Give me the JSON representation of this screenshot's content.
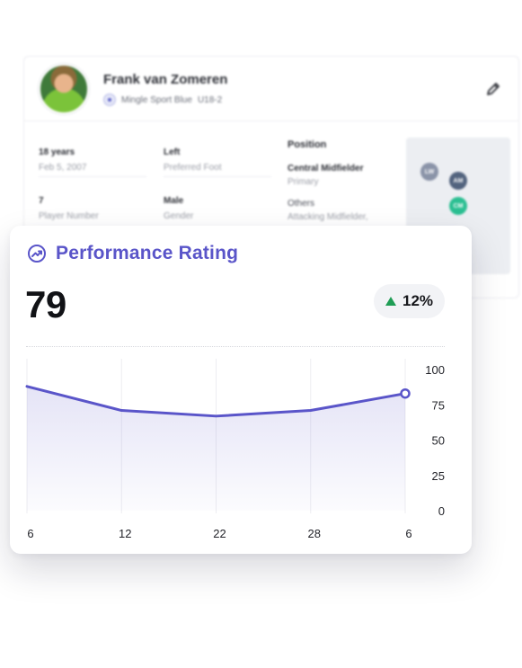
{
  "profile": {
    "name": "Frank van Zomeren",
    "team": "Mingle Sport Blue",
    "age_group": "U18-2",
    "edit_icon": "pencil-icon",
    "details": [
      {
        "value": "18 years",
        "label": "Feb 5, 2007"
      },
      {
        "value": "Left",
        "label": "Preferred Foot"
      },
      {
        "value": "7",
        "label": "Player Number"
      },
      {
        "value": "Male",
        "label": "Gender"
      }
    ],
    "position": {
      "title": "Position",
      "primary_name": "Central Midfielder",
      "primary_label": "Primary",
      "others_label": "Others",
      "others_value": "Attacking Midfielder,"
    },
    "pitch_markers": [
      {
        "label": "LW",
        "color": "#8a93a8"
      },
      {
        "label": "AM",
        "color": "#52637e"
      },
      {
        "label": "CM",
        "color": "#2bbf92"
      }
    ]
  },
  "performance": {
    "title": "Performance Rating",
    "title_icon": "trending-up-icon",
    "rating": "79",
    "change": "12%",
    "change_direction": "up",
    "accent_color": "#5a55c9",
    "positive_color": "#1f9d55"
  },
  "chart_data": {
    "type": "area",
    "x": [
      "6",
      "12",
      "22",
      "28",
      "6"
    ],
    "values": [
      88,
      71,
      67,
      71,
      83
    ],
    "ylim": [
      0,
      100
    ],
    "y_ticks": [
      "100",
      "75",
      "50",
      "25",
      "0"
    ],
    "grid": "vertical",
    "line_color": "#5a55c9",
    "title": "",
    "xlabel": "",
    "ylabel": ""
  }
}
